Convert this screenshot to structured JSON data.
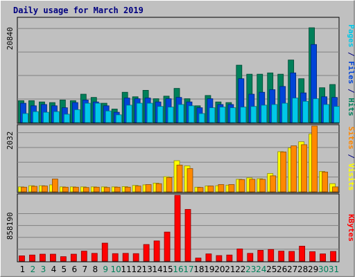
{
  "chart_data": {
    "type": "bar",
    "title": "Daily usage for March 2019",
    "days": [
      "1",
      "2",
      "3",
      "4",
      "5",
      "6",
      "7",
      "8",
      "9",
      "10",
      "11",
      "12",
      "13",
      "14",
      "15",
      "16",
      "17",
      "18",
      "19",
      "20",
      "21",
      "22",
      "23",
      "24",
      "25",
      "26",
      "27",
      "28",
      "29",
      "30",
      "31"
    ],
    "weekend_days": [
      "2",
      "3",
      "9",
      "10",
      "16",
      "17",
      "23",
      "24",
      "30",
      "31"
    ],
    "panels": [
      {
        "id": "hits",
        "tick_label": "20840",
        "tick_value": 20840,
        "ylim": [
          0,
          23000
        ],
        "ylabel_parts": [
          {
            "text": "Pages",
            "color": "#00c8e8"
          },
          {
            "text": " / ",
            "color": "#000080"
          },
          {
            "text": "Files",
            "color": "#0044d8"
          },
          {
            "text": " / ",
            "color": "#000080"
          },
          {
            "text": "Hits",
            "color": "#00805a"
          }
        ],
        "series": [
          {
            "name": "Hits",
            "color": "#00805a",
            "values": [
              4855,
              4855,
              4570,
              4425,
              5000,
              4855,
              6285,
              5570,
              4285,
              3000,
              6715,
              5715,
              7145,
              5285,
              5855,
              7570,
              5285,
              3715,
              6000,
              4570,
              4430,
              12715,
              10715,
              10715,
              11000,
              10715,
              13855,
              9715,
              21000,
              7715,
              8430
            ]
          },
          {
            "name": "Files",
            "color": "#0044d8",
            "values": [
              4285,
              3715,
              4000,
              3715,
              3285,
              4430,
              5000,
              4570,
              3715,
              2285,
              5430,
              5285,
              5430,
              4570,
              5285,
              5570,
              4570,
              3285,
              5285,
              4000,
              4000,
              9715,
              6285,
              6715,
              7285,
              8000,
              11000,
              6570,
              17285,
              5715,
              5570
            ]
          },
          {
            "name": "Pages",
            "color": "#00c8e8",
            "values": [
              2000,
              2430,
              2285,
              2430,
              1855,
              2855,
              4285,
              4285,
              2570,
              1715,
              3855,
              4285,
              4285,
              3570,
              3430,
              4000,
              3715,
              2000,
              3285,
              3430,
              3285,
              3430,
              3570,
              3855,
              4000,
              4285,
              5430,
              4715,
              5285,
              4000,
              3570
            ]
          }
        ]
      },
      {
        "id": "visits",
        "tick_label": "2032",
        "tick_value": 2032,
        "ylim": [
          0,
          2260
        ],
        "ylabel_parts": [
          {
            "text": "Sites",
            "color": "#ff8800"
          },
          {
            "text": " / ",
            "color": "#000080"
          },
          {
            "text": "Visits",
            "color": "#ffff00"
          }
        ],
        "series": [
          {
            "name": "Visits",
            "color": "#ffff00",
            "values": [
              170,
              210,
              210,
              240,
              170,
              170,
              170,
              170,
              170,
              170,
              180,
              220,
              240,
              300,
              520,
              1070,
              890,
              160,
              200,
              210,
              230,
              430,
              480,
              450,
              630,
              1380,
              1510,
              1720,
              1990,
              700,
              280
            ]
          },
          {
            "name": "Sites",
            "color": "#ff8800",
            "values": [
              160,
              190,
              200,
              440,
              160,
              160,
              150,
              160,
              150,
              160,
              160,
              200,
              250,
              280,
              490,
              920,
              800,
              150,
              200,
              250,
              250,
              420,
              430,
              430,
              550,
              1370,
              1580,
              1620,
              2260,
              680,
              170
            ]
          }
        ]
      },
      {
        "id": "kbytes",
        "tick_label": "858190",
        "tick_value": 858190,
        "ylim": [
          0,
          1190000
        ],
        "ylabel_parts": [
          {
            "text": "KBytes",
            "color": "#ff0000"
          }
        ],
        "series": [
          {
            "name": "KBytes",
            "color": "#ff0000",
            "values": [
              95000,
              110000,
              125000,
              125000,
              80000,
              125000,
              180000,
              140000,
              325000,
              135000,
              140000,
              135000,
              300000,
              365000,
              525000,
              1190000,
              935000,
              55000,
              130000,
              100000,
              110000,
              220000,
              140000,
              195000,
              210000,
              180000,
              175000,
              270000,
              170000,
              130000,
              175000
            ]
          }
        ]
      }
    ]
  }
}
